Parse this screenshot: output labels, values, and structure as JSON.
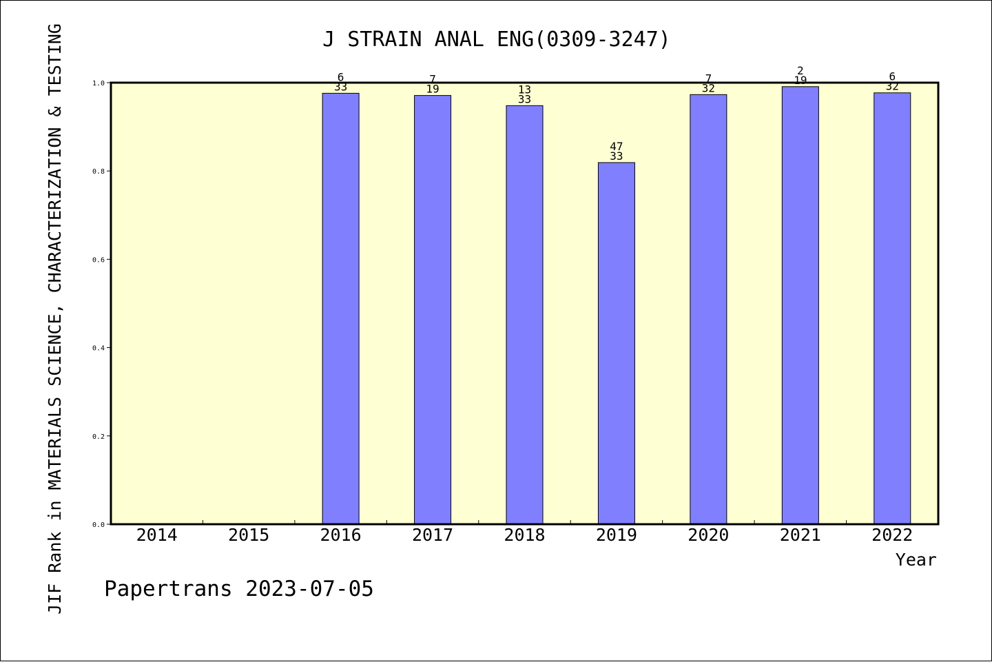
{
  "chart_data": {
    "type": "bar",
    "title": "J STRAIN ANAL ENG(0309-3247)",
    "xlabel": "Year",
    "ylabel": "JIF Rank in MATERIALS SCIENCE, CHARACTERIZATION & TESTING",
    "categories": [
      "2014",
      "2015",
      "2016",
      "2017",
      "2018",
      "2019",
      "2020",
      "2021",
      "2022"
    ],
    "values": [
      null,
      null,
      0.976,
      0.971,
      0.948,
      0.819,
      0.973,
      0.991,
      0.977
    ],
    "rank_labels": [
      null,
      null,
      {
        "rank": "6",
        "total": "33"
      },
      {
        "rank": "7",
        "total": "19"
      },
      {
        "rank": "13",
        "total": "33"
      },
      {
        "rank": "47",
        "total": "33"
      },
      {
        "rank": "7",
        "total": "32"
      },
      {
        "rank": "2",
        "total": "19"
      },
      {
        "rank": "6",
        "total": "32"
      }
    ],
    "ylim": [
      0,
      1.0
    ],
    "yticks": [
      "0.0",
      "0.2",
      "0.4",
      "0.6",
      "0.8",
      "1.0"
    ],
    "grid": false,
    "colors": {
      "bar": "#8080ff",
      "plot_background": "#ffffd4",
      "axis": "#000000"
    }
  },
  "footer": "Papertrans 2023-07-05"
}
